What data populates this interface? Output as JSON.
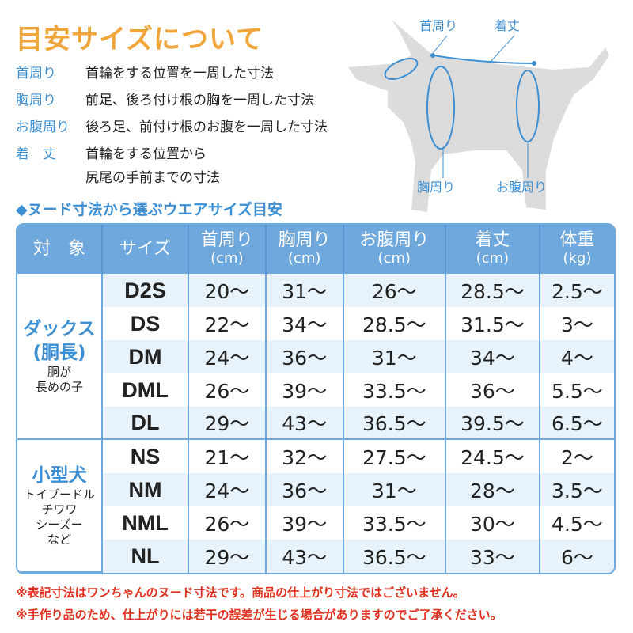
{
  "title": "目安サイズについて",
  "definitions": [
    {
      "term": "首周り",
      "desc": "首輪をする位置を一周した寸法"
    },
    {
      "term": "胸周り",
      "desc": "前足、後ろ付け根の胸を一周した寸法"
    },
    {
      "term": "お腹周り",
      "desc": "後ろ足、前付け根のお腹を一周した寸法"
    },
    {
      "term": "着　丈",
      "desc": "首輪をする位置から",
      "desc2": "尻尾の手前までの寸法"
    }
  ],
  "diagram": {
    "neck": "首周り",
    "length": "着丈",
    "chest": "胸周り",
    "belly": "お腹周り"
  },
  "subtitle": "◆ヌード寸法から選ぶウエアサイズ目安",
  "table": {
    "headers": [
      {
        "label": "対　象"
      },
      {
        "label": "サイズ"
      },
      {
        "label": "首周り",
        "unit": "(cm)"
      },
      {
        "label": "胸周り",
        "unit": "(cm)"
      },
      {
        "label": "お腹周り",
        "unit": "(cm)"
      },
      {
        "label": "着丈",
        "unit": "(cm)"
      },
      {
        "label": "体重",
        "unit": "(kg)"
      }
    ],
    "groups": [
      {
        "label1": "ダックス",
        "label2": "(胴長)",
        "sub1": "胴が",
        "sub2": "長めの子"
      },
      {
        "label1": "小型犬",
        "sub1": "トイプードル",
        "sub2": "チワワ",
        "sub3": "シーズー",
        "sub4": "など"
      }
    ],
    "rows": [
      [
        "D2S",
        "20～",
        "31～",
        "26～",
        "28.5～",
        "2.5～"
      ],
      [
        "DS",
        "22～",
        "34～",
        "28.5～",
        "31.5～",
        "3～"
      ],
      [
        "DM",
        "24～",
        "36～",
        "31～",
        "34～",
        "4～"
      ],
      [
        "DML",
        "26～",
        "39～",
        "33.5～",
        "36～",
        "5.5～"
      ],
      [
        "DL",
        "29～",
        "43～",
        "36.5～",
        "39.5～",
        "6.5～"
      ],
      [
        "NS",
        "21～",
        "32～",
        "27.5～",
        "24.5～",
        "2～"
      ],
      [
        "NM",
        "24～",
        "36～",
        "31～",
        "28～",
        "3.5～"
      ],
      [
        "NML",
        "26～",
        "39～",
        "33.5～",
        "30～",
        "4.5～"
      ],
      [
        "NL",
        "29～",
        "43～",
        "36.5～",
        "33～",
        "6～"
      ]
    ]
  },
  "notes": [
    "※表記寸法はワンちゃんのヌード寸法です。商品の仕上がり寸法ではございません。",
    "※手作り品のため、仕上がりには若干の誤差が生じる場合がありますのでご了承ください。"
  ],
  "colors": {
    "accent_orange": "#f0a53a",
    "accent_blue": "#3d8fd4",
    "header_blue": "#6fa8dc",
    "note_red": "#e0301e"
  }
}
